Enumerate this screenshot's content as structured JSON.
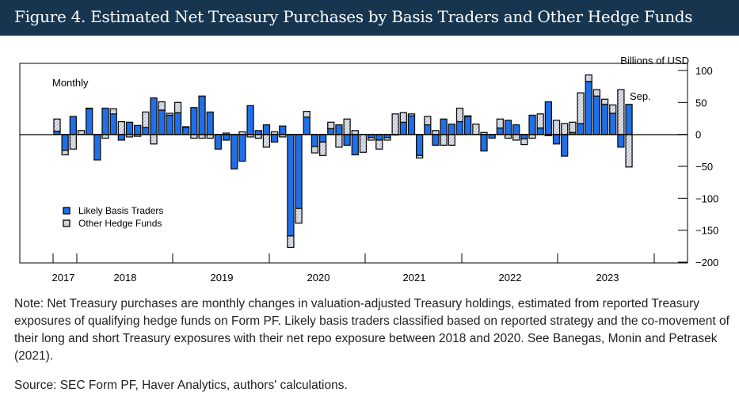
{
  "title": "Figure 4. Estimated Net Treasury Purchases by Basis Traders and Other Hedge Funds",
  "chart_data": {
    "type": "bar",
    "stacked": true,
    "frequency_label": "Monthly",
    "ylabel": "Billions of USD",
    "ylim": [
      -200,
      100
    ],
    "yticks": [
      100,
      50,
      0,
      -50,
      -100,
      -150,
      -200
    ],
    "ytick_labels": [
      "100",
      "50",
      "0",
      "−50",
      "−100",
      "−150",
      "−200"
    ],
    "xtick_labels": [
      "2017",
      "2018",
      "2019",
      "2020",
      "2021",
      "2022",
      "2023"
    ],
    "start": "2017-10",
    "end": "2023-09",
    "annotation": "Sep.",
    "legend_position": "bottom-left",
    "series": [
      {
        "name": "Likely Basis Traders",
        "color": "#1f6fe8",
        "values": [
          5,
          -25,
          28,
          0,
          40,
          -40,
          41,
          32,
          -9,
          19,
          14,
          11,
          57,
          38,
          30,
          34,
          11,
          42,
          60,
          35,
          -23,
          -9,
          -54,
          -42,
          45,
          6,
          15,
          -12,
          13,
          -159,
          -116,
          27,
          -19,
          -12,
          9,
          15,
          -17,
          -32,
          0,
          -5,
          -9,
          -5,
          -1,
          19,
          29,
          -33,
          15,
          -17,
          24,
          16,
          20,
          28,
          0,
          -26,
          -6,
          10,
          22,
          15,
          -7,
          30,
          10,
          51,
          -15,
          -34,
          3,
          17,
          83,
          60,
          47,
          33,
          -20,
          47
        ]
      },
      {
        "name": "Other Hedge Funds",
        "color": "#c8cdd8",
        "values": [
          19,
          -7,
          -23,
          6,
          1,
          0,
          -6,
          8,
          20,
          -4,
          -3,
          24,
          -15,
          13,
          3,
          16,
          1,
          -6,
          -6,
          -6,
          0,
          2,
          0,
          4,
          -4,
          -6,
          -20,
          4,
          -4,
          -18,
          -23,
          9,
          -10,
          -21,
          10,
          -20,
          24,
          6,
          -28,
          -4,
          -14,
          -4,
          32,
          15,
          3,
          -4,
          13,
          6,
          -17,
          -17,
          21,
          1,
          16,
          3,
          0,
          14,
          -6,
          -9,
          -9,
          -6,
          22,
          -2,
          22,
          17,
          16,
          48,
          10,
          10,
          8,
          13,
          70,
          -51
        ]
      }
    ]
  },
  "note": "Note: Net Treasury purchases are monthly changes in valuation-adjusted Treasury holdings, estimated from reported Treasury exposures of qualifying hedge funds on Form PF. Likely basis traders classified based on reported strategy and the co-movement of their long and short Treasury exposures with their net repo exposure between 2018 and 2020. See Banegas, Monin and Petrasek (2021).",
  "source": "Source: SEC Form PF, Haver Analytics, authors' calculations."
}
